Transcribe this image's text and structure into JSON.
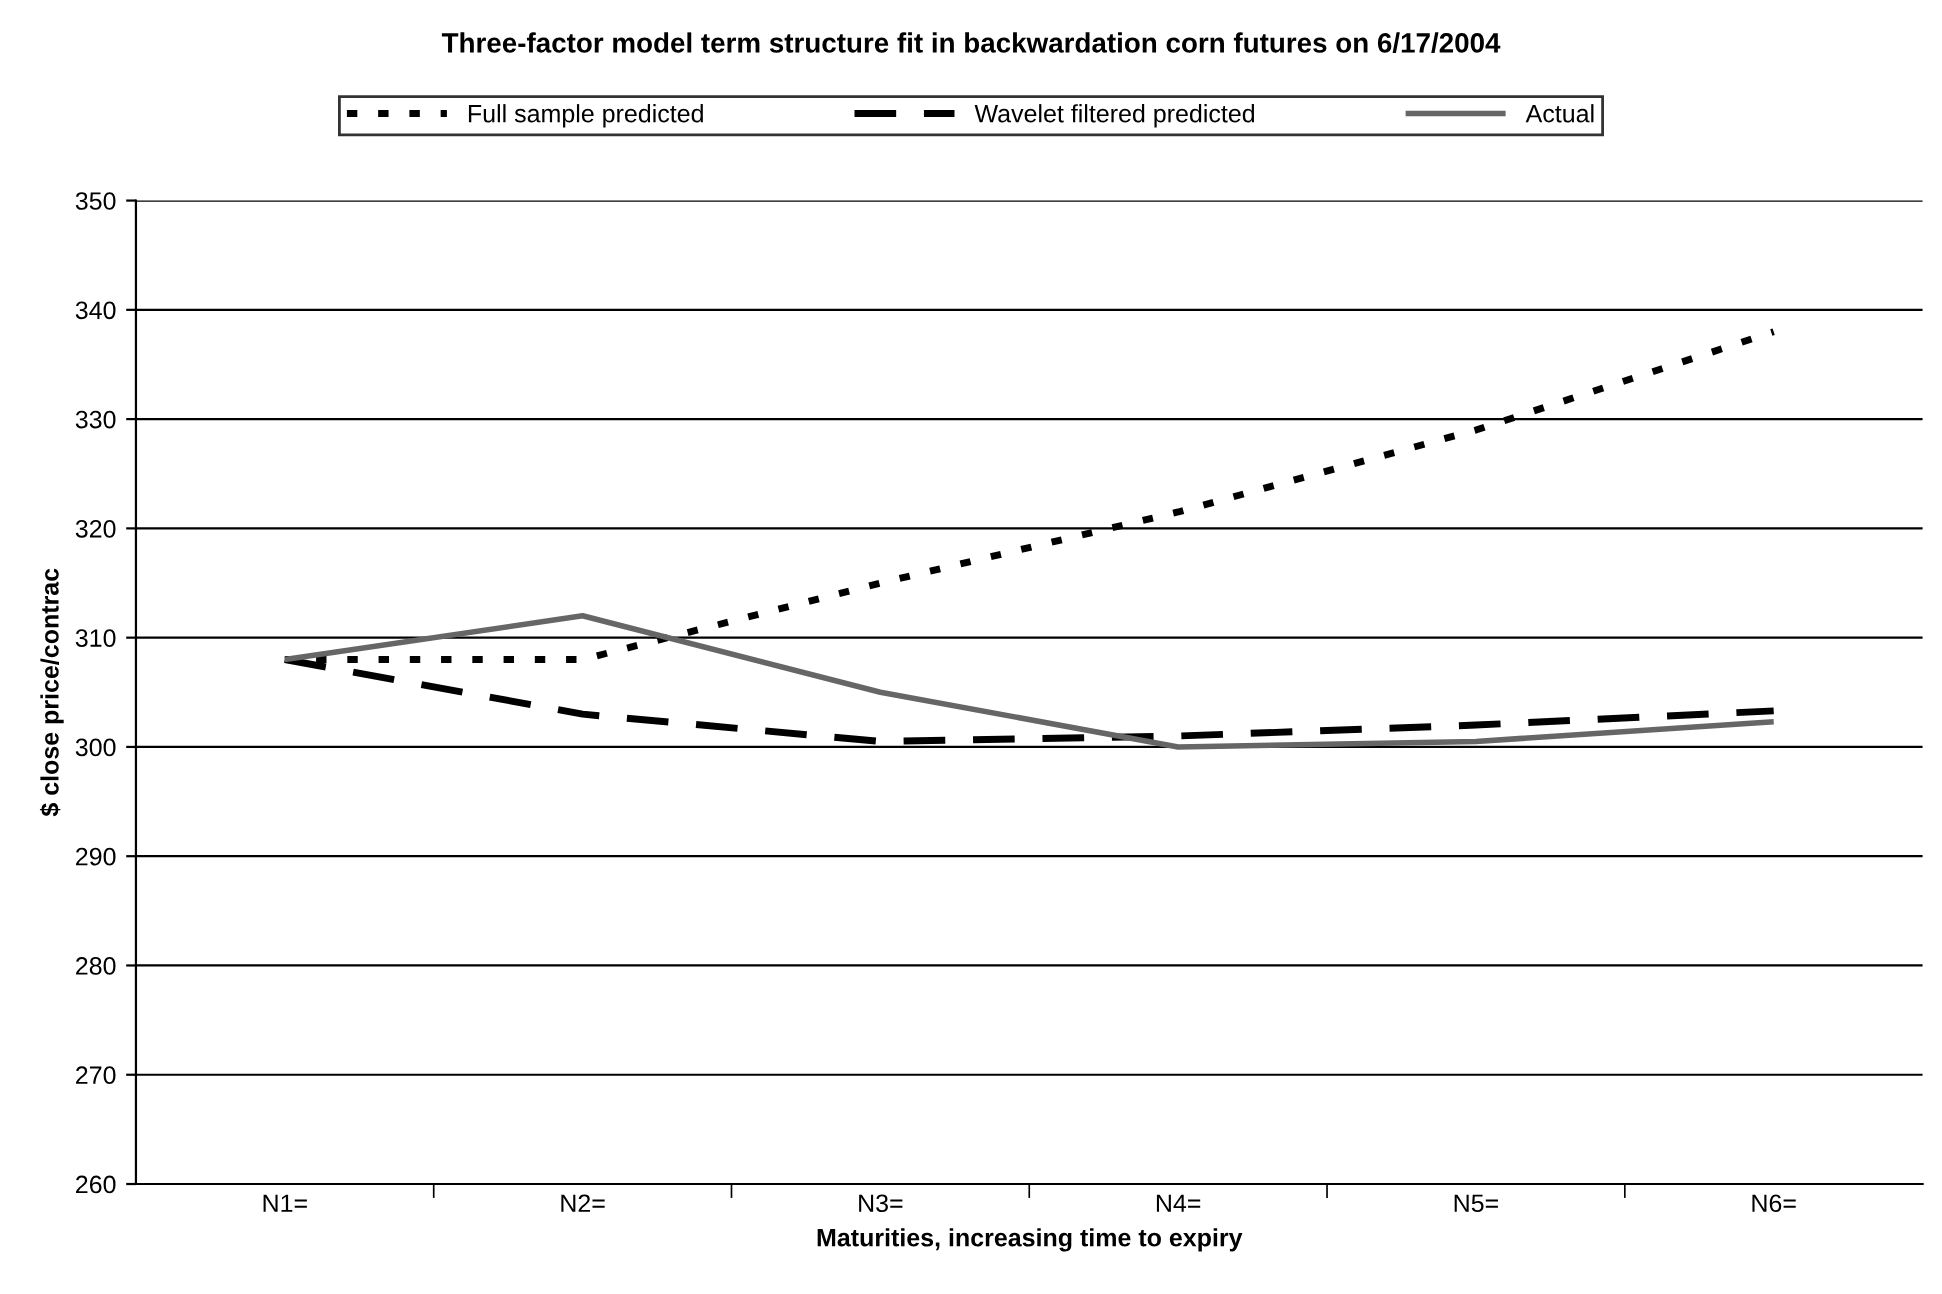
{
  "chart_data": {
    "type": "line",
    "title": "Three-factor model term structure fit in backwardation corn futures on 6/17/2004",
    "xlabel": "Maturities, increasing time to expiry",
    "ylabel": "$ close price/contrac",
    "categories": [
      "N1=",
      "N2=",
      "N3=",
      "N4=",
      "N5=",
      "N6="
    ],
    "series": [
      {
        "name": "Full sample predicted",
        "color": "#000000",
        "line_style": "dotted",
        "values": [
          308,
          308,
          315,
          321.5,
          329,
          338
        ]
      },
      {
        "name": "Wavelet filtered predicted",
        "color": "#000000",
        "line_style": "dashed",
        "values": [
          308,
          303,
          300.5,
          301,
          302,
          303.3
        ]
      },
      {
        "name": "Actual",
        "color": "#666666",
        "line_style": "solid",
        "values": [
          308,
          312,
          305,
          300,
          300.5,
          302.3
        ]
      }
    ],
    "ylim": [
      260,
      350
    ],
    "yticks": [
      260,
      270,
      280,
      290,
      300,
      310,
      320,
      330,
      340,
      350
    ],
    "grid": "y",
    "legend": "top",
    "marker": "none"
  }
}
